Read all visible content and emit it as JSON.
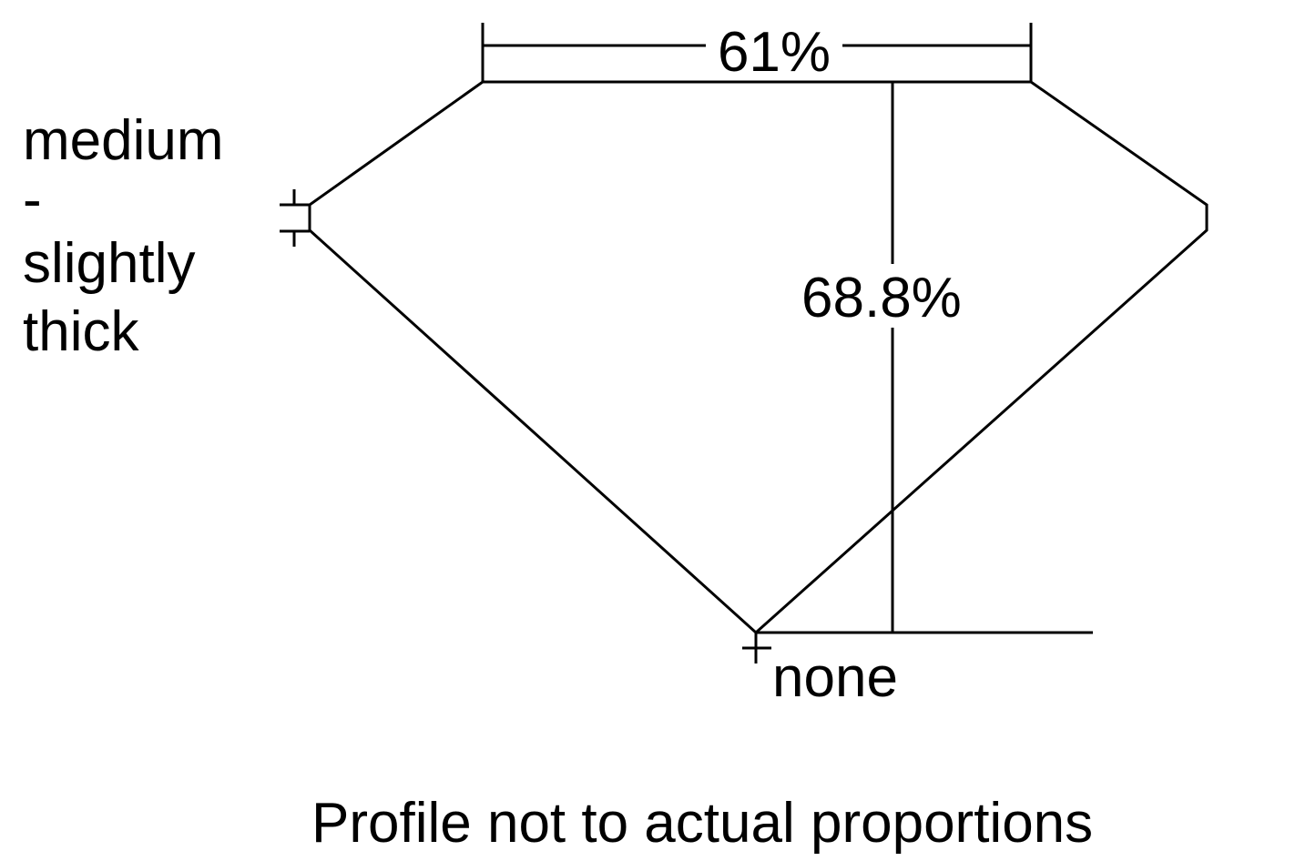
{
  "diagram": {
    "table_label": "61%",
    "depth_label": "68.8%",
    "girdle_label_lines": [
      "medium",
      "-",
      "slightly",
      "thick"
    ],
    "culet_label": "none",
    "caption": "Profile not to actual proportions",
    "line_color": "#000000"
  }
}
